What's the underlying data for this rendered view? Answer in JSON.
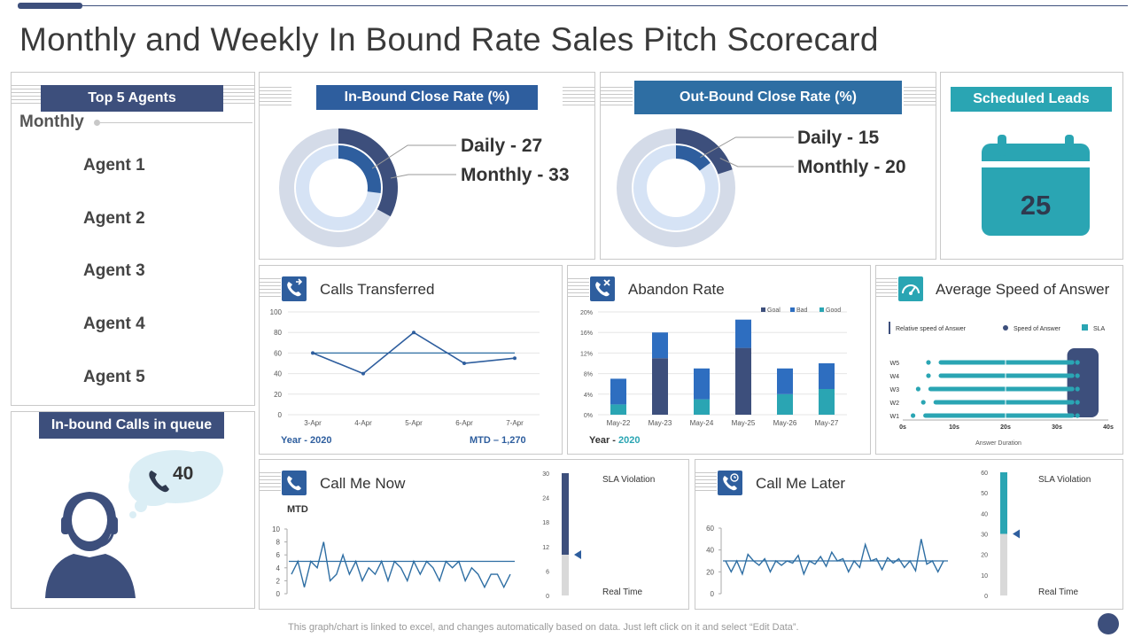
{
  "page": {
    "title": "Monthly and Weekly In Bound Rate Sales Pitch Scorecard",
    "footnote": "This graph/chart is linked to excel,  and changes automatically based on data. Just left click on it and select “Edit Data”."
  },
  "colors": {
    "navy": "#3d4f7c",
    "blue": "#2e5e9e",
    "teal": "#2aa5b3",
    "light": "#d5dfef"
  },
  "agents": {
    "title": "Top 5 Agents",
    "period": "Monthly",
    "items": [
      "Agent 1",
      "Agent 2",
      "Agent 3",
      "Agent 4",
      "Agent 5"
    ]
  },
  "queue": {
    "title": "In-bound Calls in queue",
    "value": "40"
  },
  "inbound": {
    "title": "In-Bound Close Rate (%)",
    "daily_label": "Daily  - 27",
    "monthly_label": "Monthly  - 33"
  },
  "outbound": {
    "title": "Out-Bound Close Rate (%)",
    "daily_label": "Daily  - 15",
    "monthly_label": "Monthly  - 20"
  },
  "scheduled": {
    "title": "Scheduled Leads",
    "value": "25"
  },
  "calls_transferred": {
    "title": "Calls Transferred",
    "year": "Year - 2020",
    "mtd": "MTD – 1,270"
  },
  "abandon": {
    "title": "Abandon Rate",
    "year_prefix": "Year - ",
    "year": "2020"
  },
  "speed": {
    "title": "Average Speed of Answer"
  },
  "call_now": {
    "title": "Call Me Now",
    "mtd": "MTD",
    "sla": "SLA Violation",
    "realtime": "Real Time"
  },
  "call_later": {
    "title": "Call Me Later",
    "sla": "SLA Violation",
    "realtime": "Real Time"
  },
  "chart_data": [
    {
      "id": "inbound_donut",
      "type": "pie",
      "title": "In-Bound Close Rate (%)",
      "series": [
        {
          "name": "Monthly",
          "value": 33
        },
        {
          "name": "Daily",
          "value": 27
        }
      ]
    },
    {
      "id": "outbound_donut",
      "type": "pie",
      "title": "Out-Bound Close Rate (%)",
      "series": [
        {
          "name": "Monthly",
          "value": 20
        },
        {
          "name": "Daily",
          "value": 15
        }
      ]
    },
    {
      "id": "calls_transferred",
      "type": "line",
      "title": "Calls Transferred",
      "categories": [
        "3-Apr",
        "4-Apr",
        "5-Apr",
        "6-Apr",
        "7-Apr"
      ],
      "values": [
        60,
        40,
        80,
        50,
        55
      ],
      "target": 60,
      "ylim": [
        0,
        100
      ],
      "yticks": [
        0,
        20,
        40,
        60,
        80,
        100
      ]
    },
    {
      "id": "abandon_rate",
      "type": "bar",
      "title": "Abandon Rate",
      "categories": [
        "May-22",
        "May-23",
        "May-24",
        "May-25",
        "May-26",
        "May-27"
      ],
      "yticks": [
        "0%",
        "4%",
        "8%",
        "12%",
        "16%",
        "20%"
      ],
      "ylim": [
        0,
        20
      ],
      "series": [
        {
          "name": "Goal",
          "values": [
            0,
            11,
            0,
            13,
            0,
            0
          ]
        },
        {
          "name": "Bad",
          "values": [
            5,
            5,
            6,
            5.5,
            5,
            5
          ]
        },
        {
          "name": "Good",
          "values": [
            2,
            0,
            3,
            0,
            4,
            5
          ]
        }
      ]
    },
    {
      "id": "speed_of_answer",
      "type": "scatter",
      "title": "Average Speed of Answer",
      "categories": [
        "W5",
        "W4",
        "W3",
        "W2",
        "W1"
      ],
      "xticks": [
        "0s",
        "10s",
        "20s",
        "30s",
        "40s"
      ],
      "xlim": [
        0,
        40
      ],
      "xlabel": "Answer Duration",
      "legend": [
        "Relative speed of Answer",
        "Speed of Answer",
        "SLA"
      ],
      "target": 20,
      "sla_start": 32,
      "rows": [
        {
          "start": 5,
          "end": 34
        },
        {
          "start": 5,
          "end": 34
        },
        {
          "start": 3,
          "end": 34
        },
        {
          "start": 4,
          "end": 34
        },
        {
          "start": 2,
          "end": 34
        }
      ]
    },
    {
      "id": "call_me_now",
      "type": "line",
      "title": "Call Me Now",
      "ylim": [
        0,
        10
      ],
      "yticks": [
        0,
        2,
        4,
        6,
        8,
        10
      ],
      "target": 5,
      "values": [
        3,
        5,
        1,
        5,
        4,
        8,
        2,
        3,
        6,
        3,
        5,
        2,
        4,
        3,
        5,
        2,
        5,
        4,
        2,
        5,
        3,
        5,
        4,
        2,
        5,
        4,
        5,
        2,
        4,
        3,
        1,
        3,
        3,
        1,
        3
      ],
      "gauge": {
        "yticks": [
          0,
          6,
          12,
          18,
          24,
          30
        ],
        "value": 30,
        "marker": 10
      }
    },
    {
      "id": "call_me_later",
      "type": "line",
      "title": "Call Me Later",
      "ylim": [
        0,
        60
      ],
      "yticks": [
        0,
        20,
        40,
        60
      ],
      "target": 30,
      "values": [
        30,
        20,
        30,
        18,
        36,
        30,
        26,
        32,
        20,
        30,
        26,
        30,
        28,
        35,
        18,
        30,
        27,
        34,
        25,
        38,
        30,
        32,
        20,
        30,
        24,
        45,
        30,
        32,
        22,
        33,
        28,
        32,
        24,
        30,
        21,
        50,
        27,
        30,
        20,
        30
      ],
      "gauge": {
        "yticks": [
          0,
          10,
          20,
          30,
          40,
          50,
          60
        ],
        "value": 60,
        "marker": 30
      }
    }
  ]
}
